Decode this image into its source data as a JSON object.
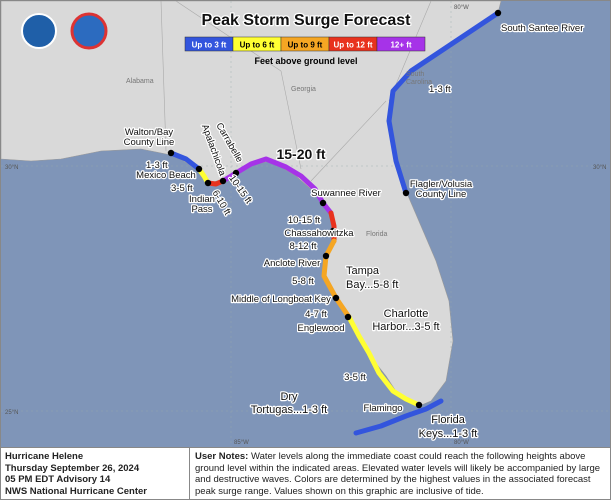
{
  "header": {
    "title": "Peak Storm Surge Forecast",
    "legend": [
      {
        "label": "Up to 3 ft",
        "color": "#3355dd"
      },
      {
        "label": "Up to 6 ft",
        "color": "#ffff33"
      },
      {
        "label": "Up to 9 ft",
        "color": "#f5a623"
      },
      {
        "label": "Up to 12 ft",
        "color": "#e8321e"
      },
      {
        "label": "12+ ft",
        "color": "#a633e8"
      }
    ],
    "legend_caption": "Feet above ground level"
  },
  "map": {
    "states": [
      "Alabama",
      "Georgia",
      "South\nCarolina",
      "Florida"
    ],
    "grid_labels": [
      "30°N",
      "30°N",
      "25°N",
      "85°W",
      "80°W",
      "80°W"
    ],
    "labels": [
      "South Santee River",
      "1-3 ft",
      "Walton/Bay",
      "County Line",
      "Carrabelle",
      "Apalachicola",
      "15-20 ft",
      "Flagler/Volusia",
      "County Line",
      "1-3 ft",
      "Mexico Beach",
      "3-5 ft",
      "Indian",
      "Pass",
      "6-10 ft",
      "10-15 ft",
      "Suwannee River",
      "10-15 ft",
      "Chassahowitzka",
      "8-12 ft",
      "Anclote River",
      "5-8 ft",
      "Tampa",
      "Bay...5-8 ft",
      "Middle of Longboat Key",
      "4-7 ft",
      "Englewood",
      "Charlotte",
      "Harbor...3-5 ft",
      "3-5 ft",
      "Dry",
      "Tortugas...1-3 ft",
      "Flamingo",
      "Florida",
      "Keys...1-3 ft"
    ]
  },
  "footer": {
    "info": [
      "Hurricane Helene",
      "Thursday September 26, 2024",
      "05 PM EDT Advisory 14",
      "NWS National Hurricane Center"
    ],
    "notes_title": "User Notes:",
    "notes": "Water levels along the immediate coast could reach the following heights above ground level within the indicated areas. Elevated water levels will likely be accompanied by large and destructive waves. Colors are determined by the highest values in the associated forecast peak surge range. Values shown on this graphic are inclusive of tide."
  }
}
